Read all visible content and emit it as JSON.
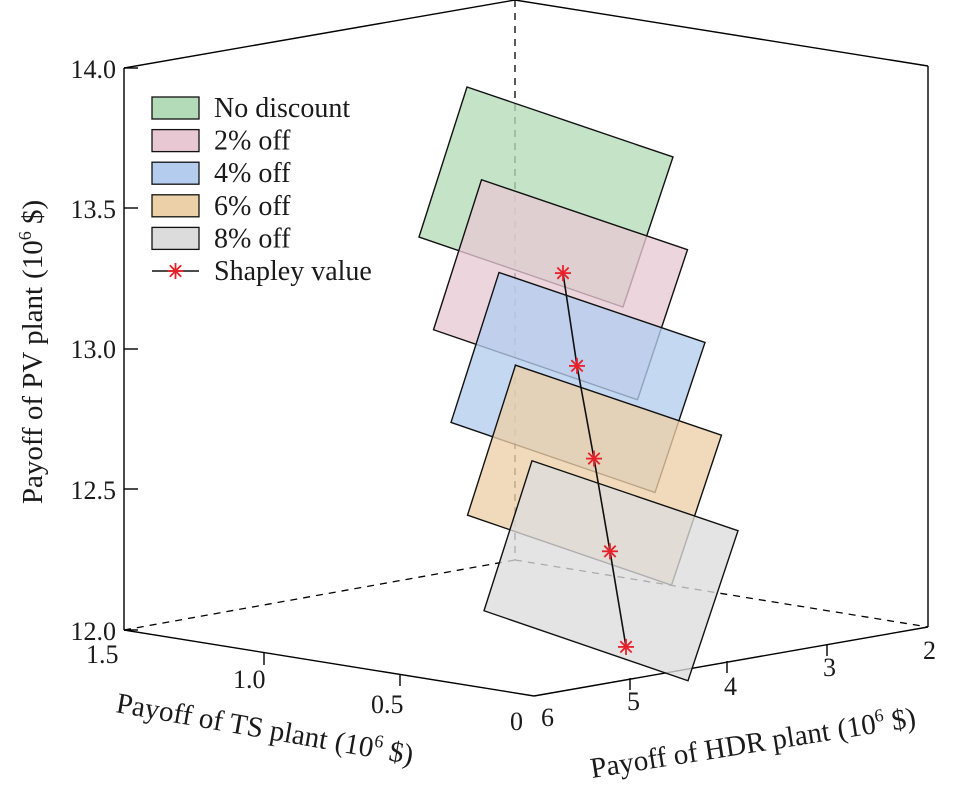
{
  "chart_data": {
    "type": "3d-plane-scatter",
    "x_axis": {
      "label": "Payoff of TS plant",
      "unit_base": "(10",
      "unit_exp": "6",
      "unit_tail": " $)",
      "ticks": [
        "1.5",
        "1.0",
        "0.5",
        "0"
      ]
    },
    "y_axis": {
      "label": "Payoff of HDR plant",
      "unit_base": "(10",
      "unit_exp": "6",
      "unit_tail": " $)",
      "ticks": [
        "6",
        "5",
        "4",
        "3",
        "2"
      ]
    },
    "z_axis": {
      "label": "Payoff of PV plant",
      "unit_base": "(10",
      "unit_exp": "6",
      "unit_tail": " $)",
      "ticks": [
        "14.0",
        "13.5",
        "13.0",
        "12.5",
        "12.0"
      ],
      "range": [
        12.0,
        14.0
      ]
    },
    "series": [
      {
        "name": "No discount",
        "color": "#b3dbb7"
      },
      {
        "name": "2% off",
        "color": "#e8c9d3"
      },
      {
        "name": "4% off",
        "color": "#b4cdee"
      },
      {
        "name": "6% off",
        "color": "#ecd0a8"
      },
      {
        "name": "8% off",
        "color": "#dcdcdc"
      }
    ],
    "shapley": {
      "name": "Shapley value",
      "color": "#e8202a",
      "pv_values": [
        13.27,
        12.94,
        12.61,
        12.28,
        11.94
      ]
    }
  }
}
